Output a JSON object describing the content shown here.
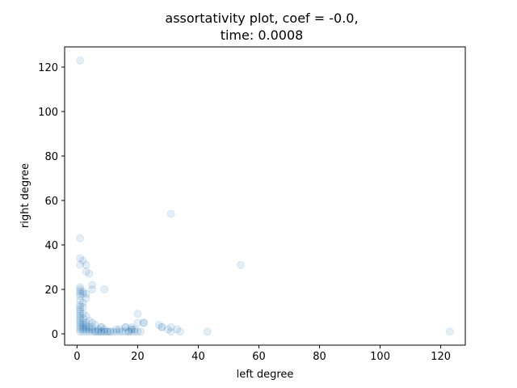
{
  "chart_data": {
    "type": "scatter",
    "title_line1": "assortativity plot, coef = -0.0,",
    "title_line2": "time: 0.0008",
    "xlabel": "left degree",
    "ylabel": "right degree",
    "xlim": [
      -4.1,
      128.1
    ],
    "ylim": [
      -5.1,
      129.1
    ],
    "xticks": [
      0,
      20,
      40,
      60,
      80,
      100,
      120
    ],
    "yticks": [
      0,
      20,
      40,
      60,
      80,
      100,
      120
    ],
    "grid": false,
    "marker_color": "#1f77b4",
    "marker_alpha": 0.12,
    "points": [
      [
        1,
        123
      ],
      [
        123,
        1
      ],
      [
        31,
        54
      ],
      [
        54,
        31
      ],
      [
        1,
        43
      ],
      [
        43,
        1
      ],
      [
        1,
        34
      ],
      [
        34,
        1
      ],
      [
        2,
        33
      ],
      [
        33,
        2
      ],
      [
        1,
        31
      ],
      [
        31,
        1
      ],
      [
        3,
        31
      ],
      [
        31,
        3
      ],
      [
        4,
        27
      ],
      [
        27,
        4
      ],
      [
        3,
        28
      ],
      [
        28,
        3
      ],
      [
        9,
        20
      ],
      [
        20,
        9
      ],
      [
        5,
        22
      ],
      [
        22,
        5
      ],
      [
        5,
        20
      ],
      [
        20,
        5
      ],
      [
        1,
        21
      ],
      [
        21,
        1
      ],
      [
        1,
        20
      ],
      [
        20,
        1
      ],
      [
        1,
        19
      ],
      [
        19,
        1
      ],
      [
        2,
        19
      ],
      [
        19,
        2
      ],
      [
        1,
        18
      ],
      [
        18,
        1
      ],
      [
        2,
        18
      ],
      [
        18,
        2
      ],
      [
        3,
        18
      ],
      [
        18,
        3
      ],
      [
        1,
        17
      ],
      [
        17,
        1
      ],
      [
        3,
        16
      ],
      [
        16,
        3
      ],
      [
        1,
        15
      ],
      [
        15,
        1
      ],
      [
        2,
        14
      ],
      [
        14,
        2
      ],
      [
        1,
        13
      ],
      [
        13,
        1
      ],
      [
        1,
        11
      ],
      [
        11,
        1
      ],
      [
        1,
        10
      ],
      [
        10,
        1
      ],
      [
        1,
        9
      ],
      [
        9,
        1
      ],
      [
        2,
        9
      ],
      [
        9,
        2
      ],
      [
        1,
        8
      ],
      [
        8,
        1
      ],
      [
        3,
        8
      ],
      [
        8,
        3
      ],
      [
        1,
        7
      ],
      [
        7,
        1
      ],
      [
        2,
        7
      ],
      [
        7,
        2
      ],
      [
        1,
        6
      ],
      [
        6,
        1
      ],
      [
        4,
        6
      ],
      [
        6,
        4
      ],
      [
        1,
        5
      ],
      [
        5,
        1
      ],
      [
        2,
        5
      ],
      [
        5,
        2
      ],
      [
        3,
        5
      ],
      [
        5,
        3
      ],
      [
        5,
        5
      ],
      [
        1,
        4
      ],
      [
        4,
        1
      ],
      [
        2,
        4
      ],
      [
        4,
        2
      ],
      [
        3,
        4
      ],
      [
        4,
        3
      ],
      [
        1,
        3
      ],
      [
        3,
        1
      ],
      [
        2,
        3
      ],
      [
        3,
        2
      ],
      [
        3,
        3
      ],
      [
        1,
        2
      ],
      [
        2,
        1
      ],
      [
        2,
        2
      ],
      [
        1,
        1
      ],
      [
        12,
        1
      ],
      [
        13,
        2
      ],
      [
        14,
        1
      ],
      [
        16,
        1
      ],
      [
        16,
        3
      ],
      [
        17,
        1
      ],
      [
        18,
        2
      ],
      [
        22,
        5
      ],
      [
        28,
        3
      ],
      [
        30,
        2
      ],
      [
        6,
        1
      ],
      [
        7,
        1
      ],
      [
        8,
        1
      ],
      [
        8,
        3
      ],
      [
        9,
        1
      ],
      [
        10,
        1
      ],
      [
        11,
        1
      ],
      [
        1,
        12
      ],
      [
        2,
        12
      ]
    ]
  }
}
